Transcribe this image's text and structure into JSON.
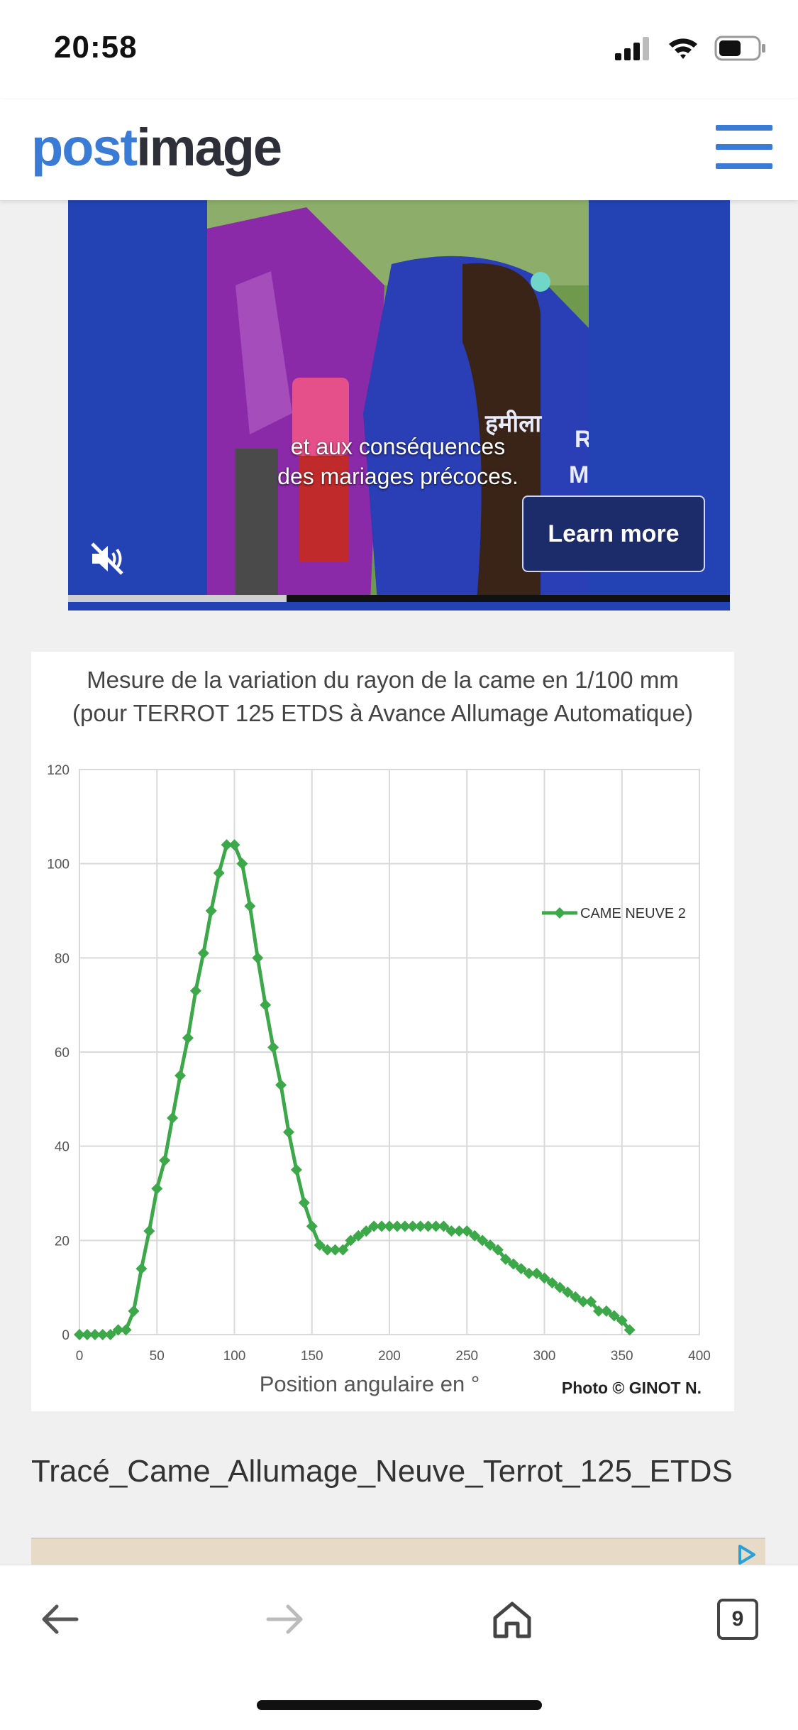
{
  "status_bar": {
    "time": "20:58"
  },
  "header": {
    "logo_post": "post",
    "logo_image": "image"
  },
  "video_ad": {
    "caption_line1": "et aux conséquences",
    "caption_line2": "des mariages précoces.",
    "overlay_text_1": "हमीला",
    "overlay_text_2": "R",
    "overlay_text_3": "Ma",
    "learn_more_label": "Learn more",
    "progress_fraction": 0.33
  },
  "chart_card": {
    "title_line1": "Mesure de la variation du rayon de la came en 1/100 mm",
    "title_line2": "(pour TERROT 125 ETDS à Avance Allumage Automatique)",
    "photo_credit": "Photo © GINOT N."
  },
  "chart_data": {
    "type": "line",
    "title": "Mesure de la variation du rayon de la came en 1/100 mm (pour TERROT 125 ETDS à Avance Allumage Automatique)",
    "xlabel": "Position angulaire en °",
    "ylabel": "",
    "xlim": [
      0,
      400
    ],
    "ylim": [
      0,
      120
    ],
    "x_ticks": [
      0,
      50,
      100,
      150,
      200,
      250,
      300,
      350,
      400
    ],
    "y_ticks": [
      0,
      20,
      40,
      60,
      80,
      100,
      120
    ],
    "grid": true,
    "legend_position": "top-right",
    "series": [
      {
        "name": "CAME NEUVE 2",
        "color": "#3da84a",
        "marker": "diamond",
        "x": [
          0,
          5,
          10,
          15,
          20,
          25,
          30,
          35,
          40,
          45,
          50,
          55,
          60,
          65,
          70,
          75,
          80,
          85,
          90,
          95,
          100,
          105,
          110,
          115,
          120,
          125,
          130,
          135,
          140,
          145,
          150,
          155,
          160,
          165,
          170,
          175,
          180,
          185,
          190,
          195,
          200,
          205,
          210,
          215,
          220,
          225,
          230,
          235,
          240,
          245,
          250,
          255,
          260,
          265,
          270,
          275,
          280,
          285,
          290,
          295,
          300,
          305,
          310,
          315,
          320,
          325,
          330,
          335,
          340,
          345,
          350,
          355
        ],
        "y": [
          0,
          0,
          0,
          0,
          0,
          1,
          1,
          5,
          14,
          22,
          31,
          37,
          46,
          55,
          63,
          73,
          81,
          90,
          98,
          104,
          104,
          100,
          91,
          80,
          70,
          61,
          53,
          43,
          35,
          28,
          23,
          19,
          18,
          18,
          18,
          20,
          21,
          22,
          23,
          23,
          23,
          23,
          23,
          23,
          23,
          23,
          23,
          23,
          22,
          22,
          22,
          21,
          20,
          19,
          18,
          16,
          15,
          14,
          13,
          13,
          12,
          11,
          10,
          9,
          8,
          7,
          7,
          5,
          5,
          4,
          3,
          1
        ]
      }
    ]
  },
  "caption": "Tracé_Came_Allumage_Neuve_Terrot_125_ETDS",
  "toolbar": {
    "tabs_count": "9"
  },
  "colors": {
    "brand_blue": "#3a7bd5",
    "ad_blue": "#2343b5",
    "series_green": "#3da84a"
  }
}
